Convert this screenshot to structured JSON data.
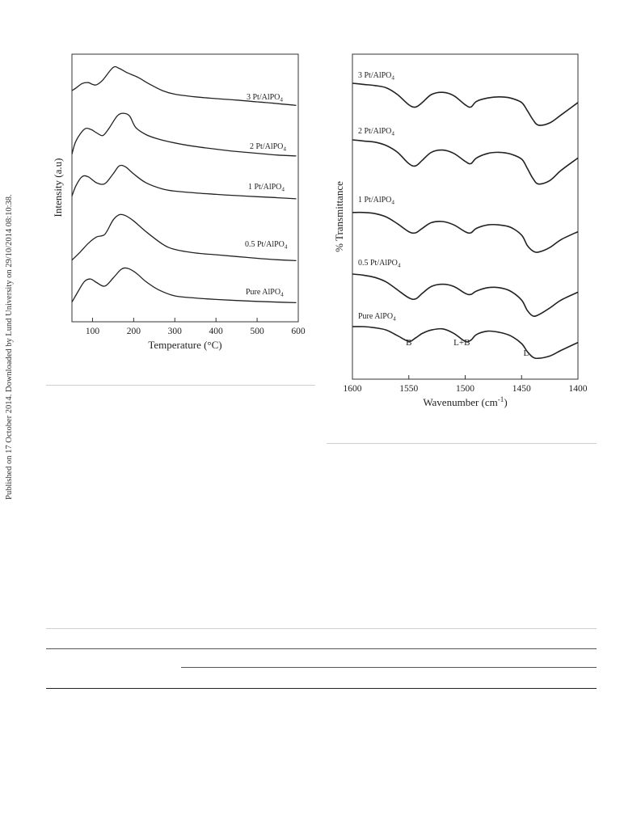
{
  "side_note": "Published on 17 October 2014. Downloaded by Lund University on 29/10/2014 08:10:38.",
  "chart_data": [
    {
      "type": "line",
      "title": "",
      "xlabel": "Temperature (°C)",
      "ylabel": "Intensity (a.u)",
      "xlim": [
        50,
        600
      ],
      "xticks": [
        "100",
        "200",
        "300",
        "400",
        "500",
        "600"
      ],
      "yticks": [],
      "grid": false,
      "legend": "none (curves labeled directly)",
      "series": [
        {
          "name": "3 Pt/AlPO4",
          "x": [
            50,
            60,
            75,
            90,
            100,
            110,
            125,
            150,
            165,
            185,
            210,
            240,
            270,
            300,
            350,
            400,
            450,
            500,
            550,
            595
          ],
          "y": [
            0.95,
            1.1,
            1.35,
            1.4,
            1.3,
            1.28,
            1.55,
            2.25,
            2.2,
            1.95,
            1.7,
            1.3,
            0.95,
            0.75,
            0.6,
            0.5,
            0.42,
            0.32,
            0.22,
            0.12
          ]
        },
        {
          "name": "2 Pt/AlPO4",
          "x": [
            50,
            60,
            80,
            95,
            110,
            125,
            140,
            160,
            175,
            190,
            205,
            230,
            260,
            300,
            350,
            400,
            450,
            500,
            550,
            595
          ],
          "y": [
            0.15,
            0.9,
            1.55,
            1.55,
            1.35,
            1.2,
            1.6,
            2.3,
            2.45,
            2.3,
            1.65,
            1.25,
            1.0,
            0.78,
            0.58,
            0.43,
            0.3,
            0.2,
            0.1,
            0.05
          ]
        },
        {
          "name": "1 Pt/AlPO4",
          "x": [
            50,
            60,
            75,
            90,
            110,
            130,
            150,
            165,
            180,
            200,
            230,
            270,
            300,
            350,
            400,
            450,
            500,
            550,
            595
          ],
          "y": [
            0.2,
            0.8,
            1.3,
            1.28,
            0.95,
            0.9,
            1.45,
            1.9,
            1.85,
            1.45,
            0.95,
            0.6,
            0.48,
            0.38,
            0.3,
            0.23,
            0.17,
            0.11,
            0.05
          ]
        },
        {
          "name": "0.5 Pt/AlPO4",
          "x": [
            50,
            70,
            90,
            110,
            130,
            150,
            165,
            180,
            200,
            230,
            270,
            300,
            350,
            400,
            450,
            500,
            550,
            595
          ],
          "y": [
            0.15,
            0.6,
            1.1,
            1.45,
            1.6,
            2.4,
            2.7,
            2.65,
            2.35,
            1.75,
            1.05,
            0.75,
            0.55,
            0.45,
            0.35,
            0.25,
            0.17,
            0.12
          ]
        },
        {
          "name": "Pure AlPO4",
          "x": [
            50,
            65,
            80,
            95,
            110,
            130,
            150,
            170,
            185,
            205,
            230,
            260,
            300,
            350,
            400,
            450,
            500,
            550,
            595
          ],
          "y": [
            0.15,
            0.75,
            1.3,
            1.45,
            1.25,
            1.05,
            1.5,
            2.0,
            2.05,
            1.8,
            1.3,
            0.85,
            0.5,
            0.38,
            0.3,
            0.24,
            0.19,
            0.15,
            0.12
          ]
        }
      ]
    },
    {
      "type": "line",
      "title": "",
      "xlabel": "Wavenumber (cm-1)",
      "ylabel": "% Transmittance",
      "xlim": [
        1600,
        1400
      ],
      "x_reversed": true,
      "xticks": [
        "1600",
        "1550",
        "1500",
        "1450",
        "1400"
      ],
      "yticks": [],
      "grid": false,
      "legend": "none (curves labeled directly)",
      "annotations": [
        {
          "text": "B",
          "x": 1550
        },
        {
          "text": "L+B",
          "x": 1503
        },
        {
          "text": "L",
          "x": 1446
        }
      ],
      "series": [
        {
          "name": "3 Pt/AlPO4",
          "x": [
            1600,
            1590,
            1580,
            1570,
            1560,
            1550,
            1544,
            1538,
            1530,
            1520,
            1510,
            1500,
            1495,
            1490,
            1480,
            1470,
            1460,
            1450,
            1445,
            1440,
            1435,
            1425,
            1415,
            1400
          ],
          "y": [
            0,
            0.05,
            0.1,
            0.2,
            0.5,
            0.95,
            1.05,
            0.85,
            0.5,
            0.4,
            0.55,
            0.95,
            1.05,
            0.8,
            0.65,
            0.6,
            0.65,
            0.85,
            1.2,
            1.6,
            1.85,
            1.75,
            1.4,
            0.85
          ]
        },
        {
          "name": "2 Pt/AlPO4",
          "x": [
            1600,
            1590,
            1580,
            1570,
            1560,
            1550,
            1544,
            1538,
            1530,
            1520,
            1510,
            1500,
            1495,
            1490,
            1480,
            1470,
            1460,
            1450,
            1445,
            1440,
            1435,
            1425,
            1415,
            1400
          ],
          "y": [
            0,
            0.05,
            0.1,
            0.25,
            0.55,
            1.05,
            1.15,
            0.9,
            0.55,
            0.45,
            0.6,
            0.95,
            1.05,
            0.8,
            0.6,
            0.55,
            0.62,
            0.85,
            1.25,
            1.7,
            1.95,
            1.8,
            1.35,
            0.8
          ]
        },
        {
          "name": "1 Pt/AlPO4",
          "x": [
            1600,
            1590,
            1580,
            1570,
            1560,
            1550,
            1544,
            1538,
            1530,
            1520,
            1510,
            1500,
            1495,
            1490,
            1480,
            1470,
            1460,
            1450,
            1445,
            1440,
            1435,
            1425,
            1415,
            1400
          ],
          "y": [
            0.1,
            0.1,
            0.15,
            0.3,
            0.6,
            0.95,
            1.0,
            0.8,
            0.55,
            0.5,
            0.65,
            0.95,
            1.0,
            0.8,
            0.65,
            0.65,
            0.75,
            1.1,
            1.55,
            1.8,
            1.85,
            1.65,
            1.3,
            0.95
          ]
        },
        {
          "name": "0.5 Pt/AlPO4",
          "x": [
            1600,
            1590,
            1580,
            1570,
            1560,
            1550,
            1544,
            1538,
            1530,
            1520,
            1510,
            1500,
            1495,
            1490,
            1480,
            1470,
            1460,
            1450,
            1445,
            1440,
            1435,
            1425,
            1415,
            1400
          ],
          "y": [
            0,
            0.05,
            0.15,
            0.35,
            0.7,
            1.05,
            1.1,
            0.85,
            0.55,
            0.45,
            0.55,
            0.85,
            0.9,
            0.75,
            0.6,
            0.6,
            0.75,
            1.15,
            1.6,
            1.85,
            1.8,
            1.5,
            1.15,
            0.8
          ]
        },
        {
          "name": "Pure AlPO4",
          "x": [
            1600,
            1590,
            1580,
            1570,
            1560,
            1550,
            1544,
            1538,
            1530,
            1520,
            1510,
            1500,
            1495,
            1490,
            1480,
            1470,
            1460,
            1450,
            1445,
            1440,
            1435,
            1425,
            1415,
            1400
          ],
          "y": [
            0,
            0,
            0.05,
            0.15,
            0.4,
            0.65,
            0.5,
            0.3,
            0.15,
            0.1,
            0.3,
            0.65,
            0.6,
            0.35,
            0.2,
            0.25,
            0.4,
            0.75,
            1.1,
            1.35,
            1.4,
            1.3,
            1.05,
            0.7
          ]
        }
      ]
    }
  ]
}
